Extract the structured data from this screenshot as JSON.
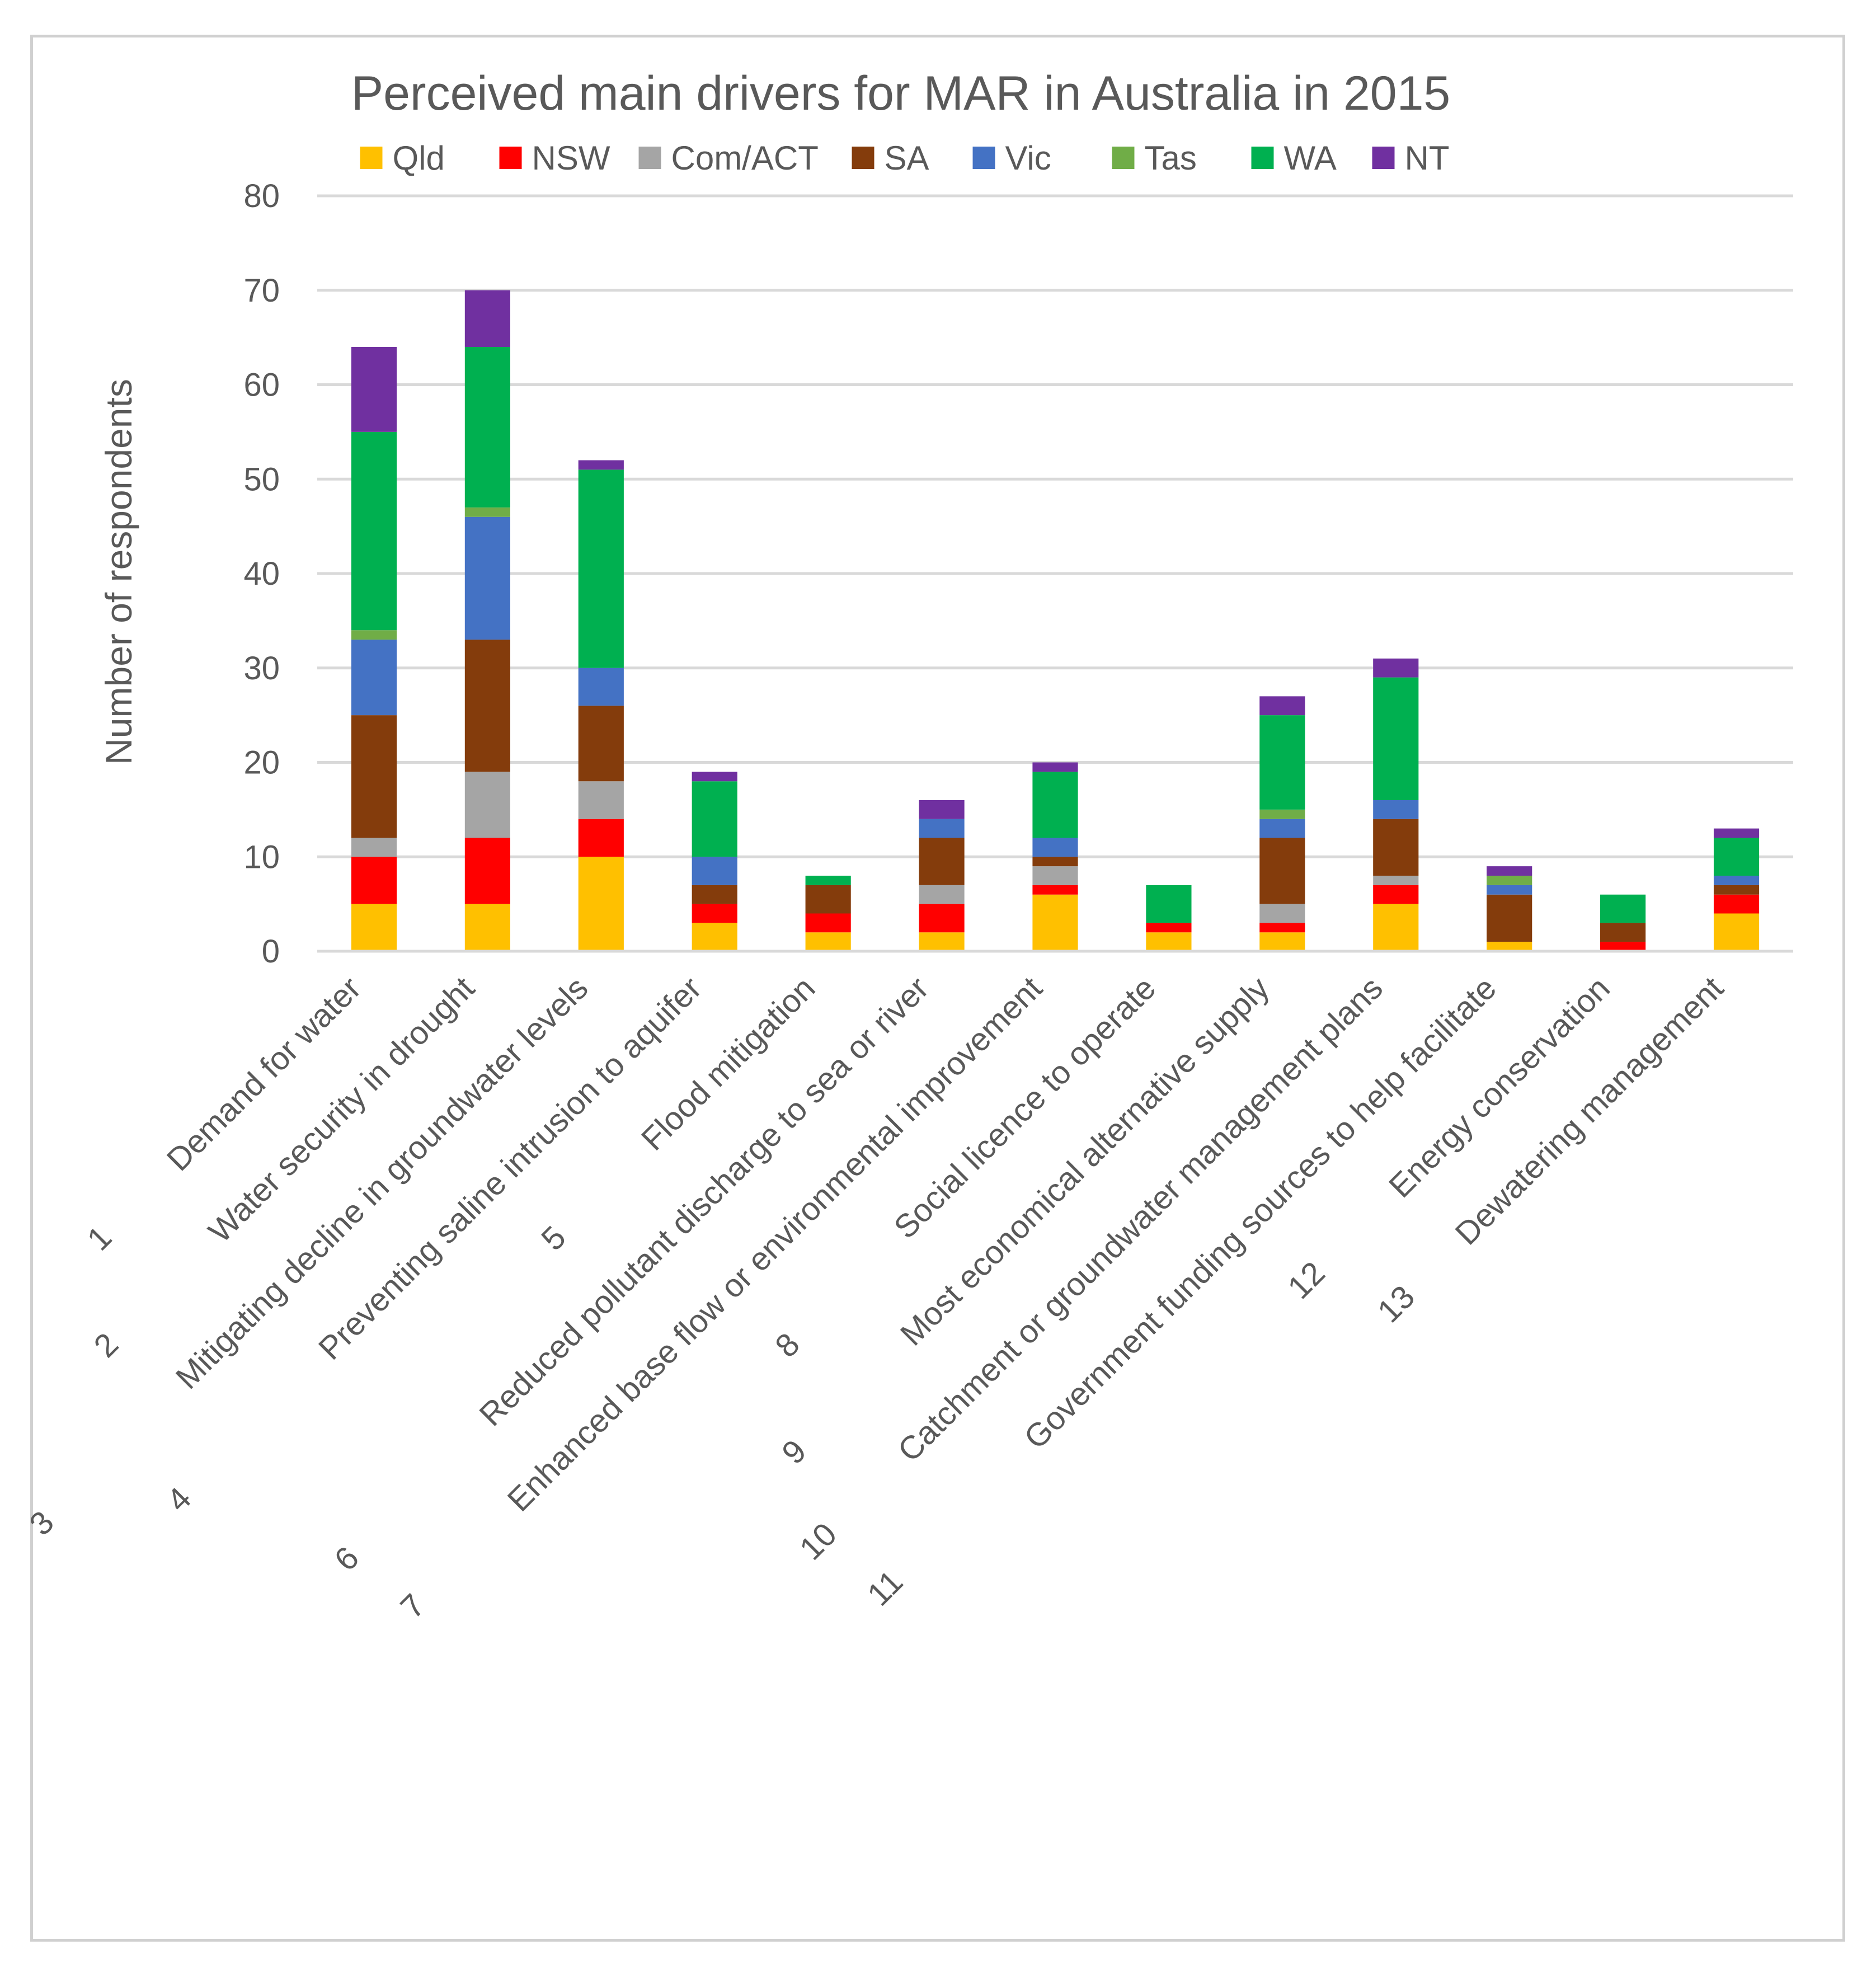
{
  "chart_data": {
    "type": "bar",
    "stacked": true,
    "title": "Perceived main drivers for MAR in Australia in 2015",
    "xlabel": "",
    "ylabel": "Number of respondents",
    "ylim": [
      0,
      80
    ],
    "yticks": [
      0,
      10,
      20,
      30,
      40,
      50,
      60,
      70,
      80
    ],
    "grid": true,
    "legend_position": "top",
    "category_numbers": [
      "1",
      "2",
      "3",
      "4",
      "5",
      "6",
      "7",
      "8",
      "9",
      "10",
      "11",
      "12",
      "13"
    ],
    "categories": [
      "Demand for water",
      "Water security in drought",
      "Mitigating decline in groundwater levels",
      "Preventing saline intrusion to aquifer",
      "Flood mitigation",
      "Reduced pollutant discharge to sea or river",
      "Enhanced base flow or environmental improvement",
      "Social licence to operate",
      "Most economical alternative supply",
      "Catchment or groundwater management plans",
      "Government funding sources to help facilitate",
      "Energy conservation",
      "Dewatering management"
    ],
    "series": [
      {
        "name": "Qld",
        "color": "#FFC000",
        "values": [
          5,
          5,
          10,
          3,
          2,
          2,
          6,
          2,
          2,
          5,
          1,
          0,
          4
        ]
      },
      {
        "name": "NSW",
        "color": "#FF0000",
        "values": [
          5,
          7,
          4,
          2,
          2,
          3,
          1,
          1,
          1,
          2,
          0,
          1,
          2
        ]
      },
      {
        "name": "Com/ACT",
        "color": "#A5A5A5",
        "values": [
          2,
          7,
          4,
          0,
          0,
          2,
          2,
          0,
          2,
          1,
          0,
          0,
          0
        ]
      },
      {
        "name": "SA",
        "color": "#843C0C",
        "values": [
          13,
          14,
          8,
          2,
          3,
          5,
          1,
          0,
          7,
          6,
          5,
          2,
          1
        ]
      },
      {
        "name": "Vic",
        "color": "#4472C4",
        "values": [
          8,
          13,
          4,
          3,
          0,
          2,
          2,
          0,
          2,
          2,
          1,
          0,
          1
        ]
      },
      {
        "name": "Tas",
        "color": "#70AD47",
        "values": [
          1,
          1,
          0,
          0,
          0,
          0,
          0,
          0,
          1,
          0,
          1,
          0,
          0
        ]
      },
      {
        "name": "WA",
        "color": "#00B050",
        "values": [
          21,
          17,
          21,
          8,
          1,
          0,
          7,
          4,
          10,
          13,
          0,
          3,
          4
        ]
      },
      {
        "name": "NT",
        "color": "#7030A0",
        "values": [
          9,
          6,
          1,
          1,
          0,
          2,
          1,
          0,
          2,
          2,
          1,
          0,
          1
        ]
      }
    ]
  }
}
